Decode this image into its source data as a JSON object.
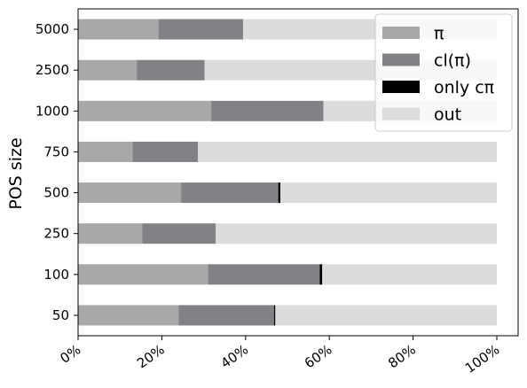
{
  "chart_data": {
    "type": "bar",
    "orientation": "horizontal",
    "stacked": true,
    "title": "",
    "xlabel": "",
    "ylabel": "POS size",
    "xlim": [
      0,
      100
    ],
    "x_ticks": [
      0,
      20,
      40,
      60,
      80,
      100
    ],
    "x_tick_labels": [
      "0%",
      "20%",
      "40%",
      "60%",
      "80%",
      "100%"
    ],
    "grid": false,
    "legend_position": "top-right",
    "categories": [
      "50",
      "100",
      "250",
      "500",
      "750",
      "1000",
      "2500",
      "5000"
    ],
    "series": [
      {
        "name": "π",
        "color": "#a8a8a8",
        "values": [
          24.0,
          31.0,
          15.3,
          24.6,
          13.0,
          31.8,
          14.0,
          19.2
        ]
      },
      {
        "name": "cl(π)",
        "color": "#808285",
        "values": [
          22.8,
          26.7,
          17.6,
          23.2,
          15.6,
          26.8,
          16.2,
          20.2
        ]
      },
      {
        "name": "only cπ",
        "color": "#000000",
        "values": [
          0.3,
          0.6,
          0.0,
          0.5,
          0.0,
          0.0,
          0.0,
          0.0
        ]
      },
      {
        "name": "out",
        "color": "#dcdcdc",
        "values": [
          52.9,
          41.7,
          67.1,
          51.7,
          71.4,
          41.4,
          69.8,
          60.6
        ]
      }
    ]
  }
}
